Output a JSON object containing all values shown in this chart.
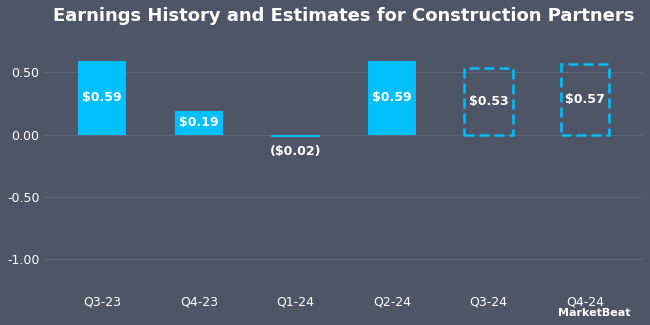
{
  "title": "Earnings History and Estimates for Construction Partners",
  "categories": [
    "Q3-23",
    "Q4-23",
    "Q1-24",
    "Q2-24",
    "Q3-24",
    "Q4-24"
  ],
  "values": [
    0.59,
    0.19,
    -0.02,
    0.59,
    0.53,
    0.57
  ],
  "labels": [
    "$0.59",
    "$0.19",
    "($0.02)",
    "$0.59",
    "$0.53",
    "$0.57"
  ],
  "is_estimate": [
    false,
    false,
    false,
    false,
    true,
    true
  ],
  "solid_color": "#00bfff",
  "dashed_color": "#00bfff",
  "background_color": "#4d5566",
  "plot_bg_color": "#4d5566",
  "text_color": "#ffffff",
  "grid_color": "#5e6878",
  "title_fontsize": 13,
  "label_fontsize": 9,
  "tick_fontsize": 9,
  "ylim": [
    -1.25,
    0.8
  ],
  "yticks": [
    -1.0,
    -0.5,
    0.0,
    0.5
  ],
  "bar_width": 0.5
}
